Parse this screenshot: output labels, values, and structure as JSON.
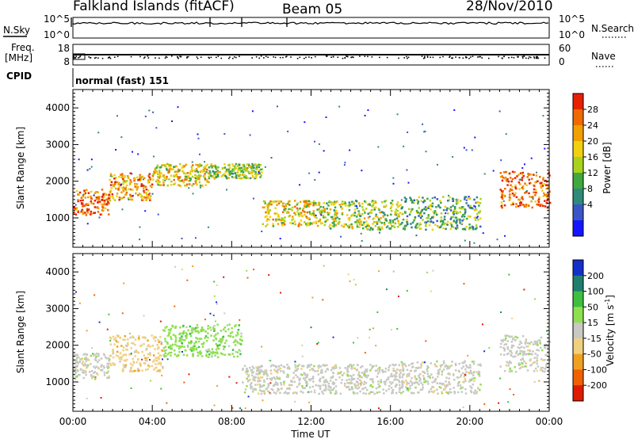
{
  "header": {
    "station": "Falkland Islands (fitACF)",
    "beam": "Beam 05",
    "date": "28/Nov/2010"
  },
  "param_panels": {
    "nsky": {
      "label": "N.Sky",
      "ticks": [
        "10^5",
        "10^0"
      ]
    },
    "nsearch": {
      "label": "N.Search",
      "ticks": [
        "10^5",
        "10^0"
      ]
    },
    "freq": {
      "label_line1": "Freq.",
      "label_line2": "[MHz]",
      "ticks": [
        "18",
        "8"
      ]
    },
    "nave": {
      "label": "Nave",
      "ticks": [
        "60",
        "0"
      ]
    },
    "cpid": {
      "label": "CPID",
      "value": "normal (fast) 151"
    }
  },
  "x_axis": {
    "label": "Time UT",
    "ticks": [
      "00:00",
      "04:00",
      "08:00",
      "12:00",
      "16:00",
      "20:00",
      "00:00"
    ],
    "range_hours": [
      0,
      24
    ]
  },
  "chart_data": [
    {
      "type": "heatmap",
      "title": "",
      "xlabel": "Time UT",
      "ylabel": "Slant Range [km]",
      "xlim": [
        0,
        24
      ],
      "ylim": [
        200,
        4500
      ],
      "yticks": [
        1000,
        2000,
        3000,
        4000
      ],
      "colorbar": {
        "label": "Power [dB]",
        "tick_labels": [
          "4",
          "8",
          "12",
          "16",
          "20",
          "24",
          "28"
        ],
        "colors": [
          "#1515ff",
          "#3b55c8",
          "#2f8a7a",
          "#3fa83f",
          "#a9d21e",
          "#f0d010",
          "#f0a000",
          "#f06a00",
          "#e82000"
        ]
      },
      "scatter_bands": [
        {
          "x": [
            0.0,
            1.8
          ],
          "y": [
            1100,
            1800
          ],
          "level": 7
        },
        {
          "x": [
            1.8,
            4.0
          ],
          "y": [
            1500,
            2250
          ],
          "level": 6
        },
        {
          "x": [
            4.0,
            6.8
          ],
          "y": [
            1900,
            2500
          ],
          "level": 5
        },
        {
          "x": [
            6.8,
            9.5
          ],
          "y": [
            2100,
            2500
          ],
          "level": 4
        },
        {
          "x": [
            9.5,
            12.5
          ],
          "y": [
            800,
            1500
          ],
          "level": 5
        },
        {
          "x": [
            12.5,
            16.5
          ],
          "y": [
            700,
            1500
          ],
          "level": 4
        },
        {
          "x": [
            16.5,
            20.5
          ],
          "y": [
            700,
            1600
          ],
          "level": 3
        },
        {
          "x": [
            21.5,
            24.0
          ],
          "y": [
            1300,
            2300
          ],
          "level": 7
        }
      ]
    },
    {
      "type": "heatmap",
      "title": "",
      "xlabel": "Time UT",
      "ylabel": "Slant Range [km]",
      "xlim": [
        0,
        24
      ],
      "ylim": [
        200,
        4500
      ],
      "yticks": [
        1000,
        2000,
        3000,
        4000
      ],
      "colorbar": {
        "label": "Velocity [m s^-1]",
        "tick_labels": [
          "200",
          "100",
          "50",
          "15",
          "-15",
          "-50",
          "-100",
          "-200"
        ],
        "colors": [
          "#1530c8",
          "#1f7f6f",
          "#3fbf3f",
          "#8fe04f",
          "#c8c8c4",
          "#f0d080",
          "#f0a020",
          "#f06000",
          "#e01a00"
        ]
      },
      "scatter_bands": [
        {
          "x": [
            0.0,
            1.8
          ],
          "y": [
            1100,
            1800
          ],
          "level": "-15"
        },
        {
          "x": [
            1.8,
            4.5
          ],
          "y": [
            1300,
            2300
          ],
          "level": "-50"
        },
        {
          "x": [
            4.5,
            8.5
          ],
          "y": [
            1700,
            2600
          ],
          "level": "15"
        },
        {
          "x": [
            8.5,
            12.5
          ],
          "y": [
            700,
            1500
          ],
          "level": "-15"
        },
        {
          "x": [
            12.5,
            16.5
          ],
          "y": [
            700,
            1500
          ],
          "level": "-15"
        },
        {
          "x": [
            16.5,
            20.5
          ],
          "y": [
            700,
            1600
          ],
          "level": "-15"
        },
        {
          "x": [
            21.5,
            24.0
          ],
          "y": [
            1300,
            2300
          ],
          "level": "-15"
        }
      ]
    }
  ]
}
